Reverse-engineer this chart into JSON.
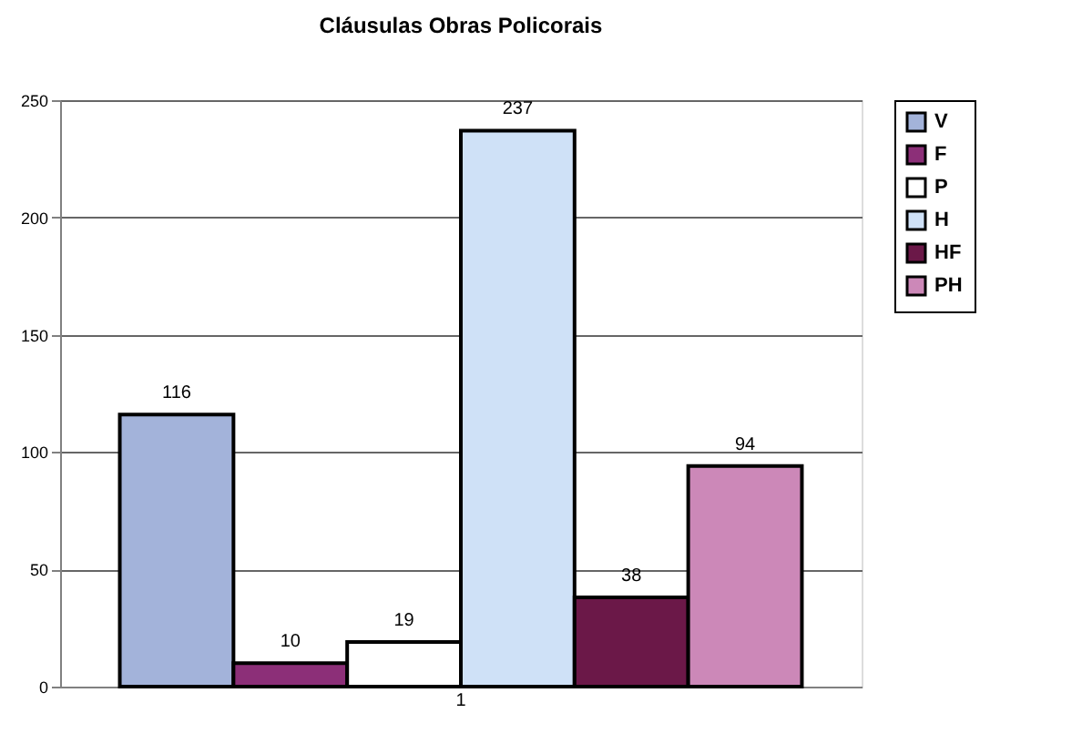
{
  "chart_data": {
    "type": "bar",
    "title": "Cláusulas Obras Policorais",
    "categories": [
      "1"
    ],
    "series": [
      {
        "name": "V",
        "color": "#a3b3da",
        "values": [
          116
        ]
      },
      {
        "name": "F",
        "color": "#8c2f78",
        "values": [
          10
        ]
      },
      {
        "name": "P",
        "color": "#ffffff",
        "values": [
          19
        ]
      },
      {
        "name": "H",
        "color": "#cfe1f7",
        "values": [
          237
        ]
      },
      {
        "name": "HF",
        "color": "#6b1848",
        "values": [
          38
        ]
      },
      {
        "name": "PH",
        "color": "#cc88b8",
        "values": [
          94
        ]
      }
    ],
    "ylim": [
      0,
      250
    ],
    "yticks": [
      0,
      50,
      100,
      150,
      200,
      250
    ],
    "grid": "y",
    "legend": "right",
    "data_labels": true
  }
}
